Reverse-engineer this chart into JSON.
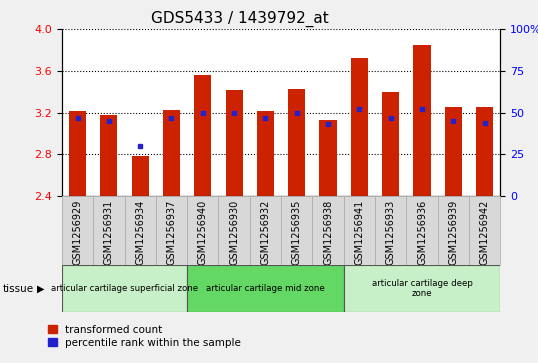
{
  "title": "GDS5433 / 1439792_at",
  "samples": [
    "GSM1256929",
    "GSM1256931",
    "GSM1256934",
    "GSM1256937",
    "GSM1256940",
    "GSM1256930",
    "GSM1256932",
    "GSM1256935",
    "GSM1256938",
    "GSM1256941",
    "GSM1256933",
    "GSM1256936",
    "GSM1256939",
    "GSM1256942"
  ],
  "transformed_count": [
    3.21,
    3.18,
    2.78,
    3.22,
    3.56,
    3.42,
    3.21,
    3.43,
    3.13,
    3.72,
    3.4,
    3.85,
    3.25,
    3.25
  ],
  "percentile_rank": [
    47,
    45,
    30,
    47,
    50,
    50,
    47,
    50,
    43,
    52,
    47,
    52,
    45,
    44
  ],
  "ylim_left": [
    2.4,
    4.0
  ],
  "ylim_right": [
    0,
    100
  ],
  "yticks_left": [
    2.4,
    2.8,
    3.2,
    3.6,
    4.0
  ],
  "yticks_right": [
    0,
    25,
    50,
    75,
    100
  ],
  "groups": [
    {
      "label": "articular cartilage superficial zone",
      "start": 0,
      "end": 4,
      "color": "#c8f0c8"
    },
    {
      "label": "articular cartilage mid zone",
      "start": 4,
      "end": 9,
      "color": "#64d864"
    },
    {
      "label": "articular cartilage deep\nzone",
      "start": 9,
      "end": 14,
      "color": "#c8f0c8"
    }
  ],
  "bar_color": "#cc2200",
  "dot_color": "#2222cc",
  "tissue_label": "tissue",
  "legend_red": "transformed count",
  "legend_blue": "percentile rank within the sample",
  "title_fontsize": 11,
  "tick_fontsize": 7,
  "base": 2.4
}
